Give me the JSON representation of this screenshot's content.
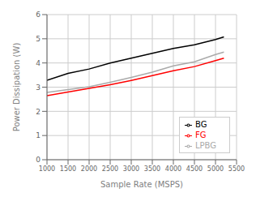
{
  "chart_data": {
    "type": "line",
    "xlabel": "Sample Rate (MSPS)",
    "ylabel": "Power Dissipation (W)",
    "xlim": [
      1000,
      5500
    ],
    "ylim": [
      0,
      6
    ],
    "xticks": [
      1000,
      1500,
      2000,
      2500,
      3000,
      3500,
      4000,
      4500,
      5000,
      5500
    ],
    "yticks": [
      0,
      1,
      2,
      3,
      4,
      5,
      6
    ],
    "x": [
      1000,
      1500,
      2000,
      2500,
      3000,
      3500,
      4000,
      4500,
      5000,
      5200
    ],
    "series": [
      {
        "name": "BG",
        "color": "#000000",
        "values": [
          3.28,
          3.57,
          3.75,
          4.0,
          4.2,
          4.4,
          4.6,
          4.75,
          4.97,
          5.08
        ]
      },
      {
        "name": "FG",
        "color": "#ff0000",
        "values": [
          2.65,
          2.8,
          2.95,
          3.1,
          3.28,
          3.48,
          3.68,
          3.85,
          4.1,
          4.2
        ]
      },
      {
        "name": "LPBG",
        "color": "#aaaaaa",
        "values": [
          2.78,
          2.9,
          3.02,
          3.2,
          3.4,
          3.62,
          3.88,
          4.05,
          4.35,
          4.45
        ]
      }
    ],
    "grid": true,
    "legend": "lower right"
  }
}
